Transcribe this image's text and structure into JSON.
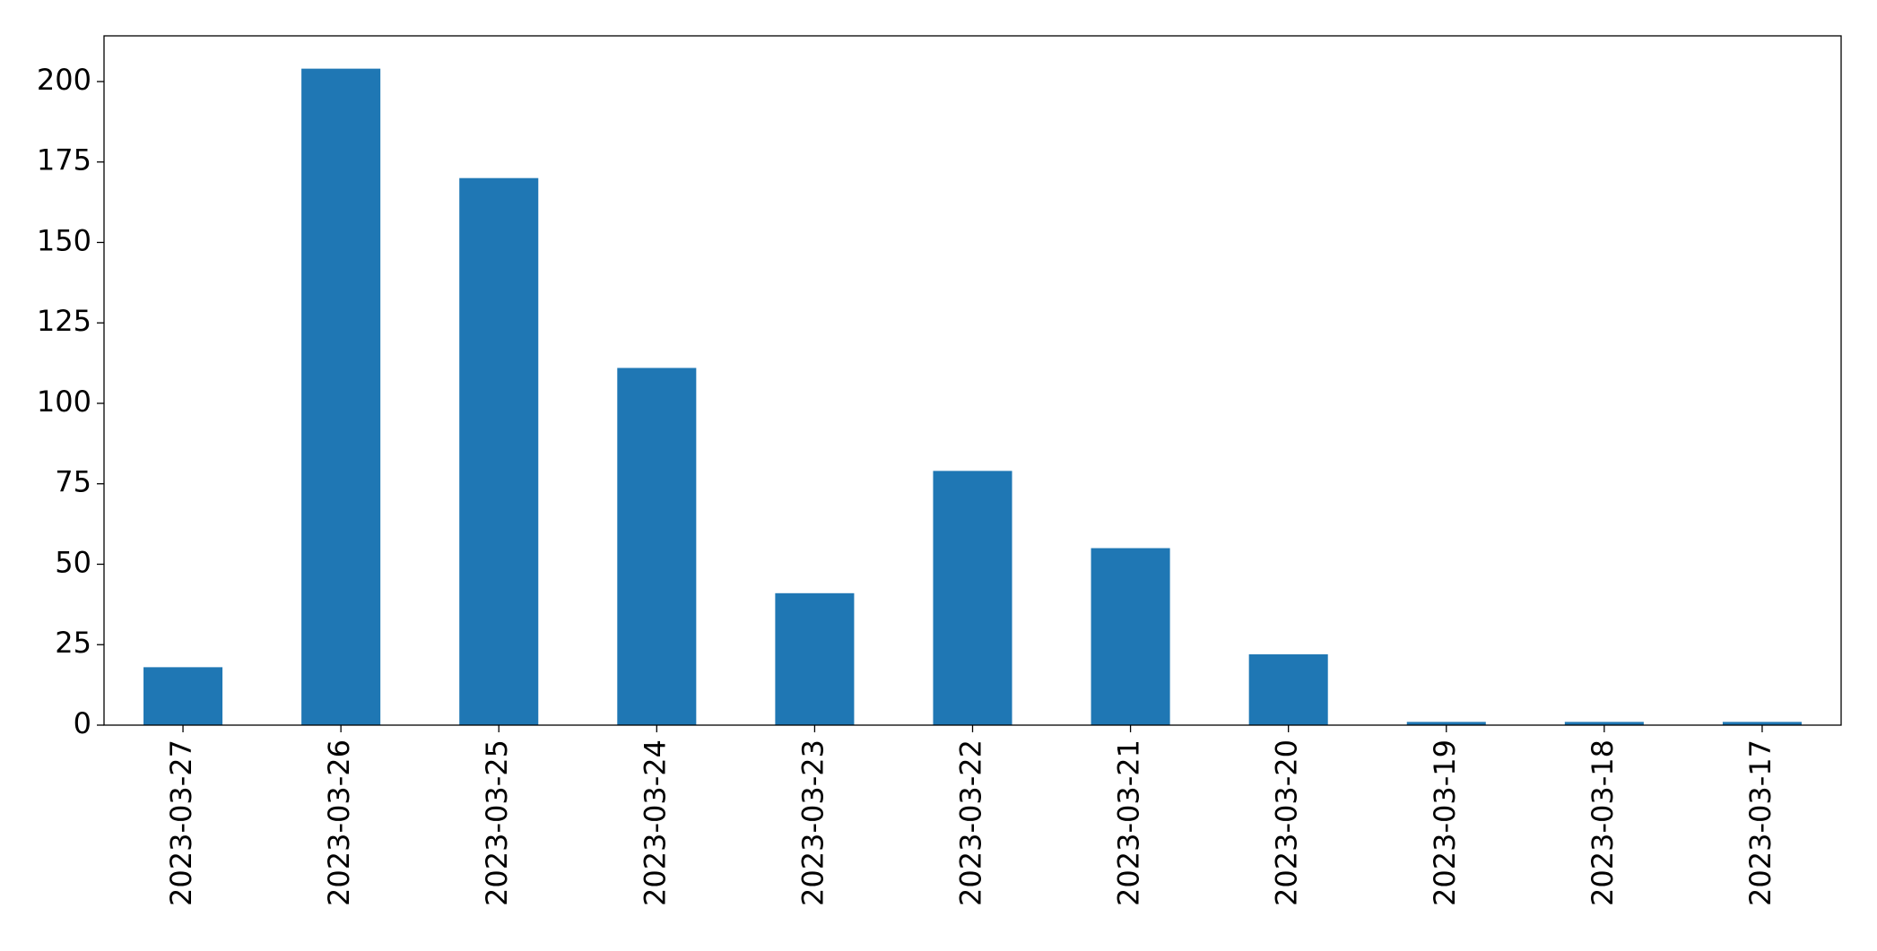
{
  "chart_data": {
    "type": "bar",
    "categories": [
      "2023-03-27",
      "2023-03-26",
      "2023-03-25",
      "2023-03-24",
      "2023-03-23",
      "2023-03-22",
      "2023-03-21",
      "2023-03-20",
      "2023-03-19",
      "2023-03-18",
      "2023-03-17"
    ],
    "values": [
      18,
      204,
      170,
      111,
      41,
      79,
      55,
      22,
      1,
      1,
      1
    ],
    "color": "#1f77b4",
    "ylim": [
      0,
      214.2
    ],
    "yticks": [
      0,
      25,
      50,
      75,
      100,
      125,
      150,
      175,
      200
    ],
    "grid": false
  }
}
